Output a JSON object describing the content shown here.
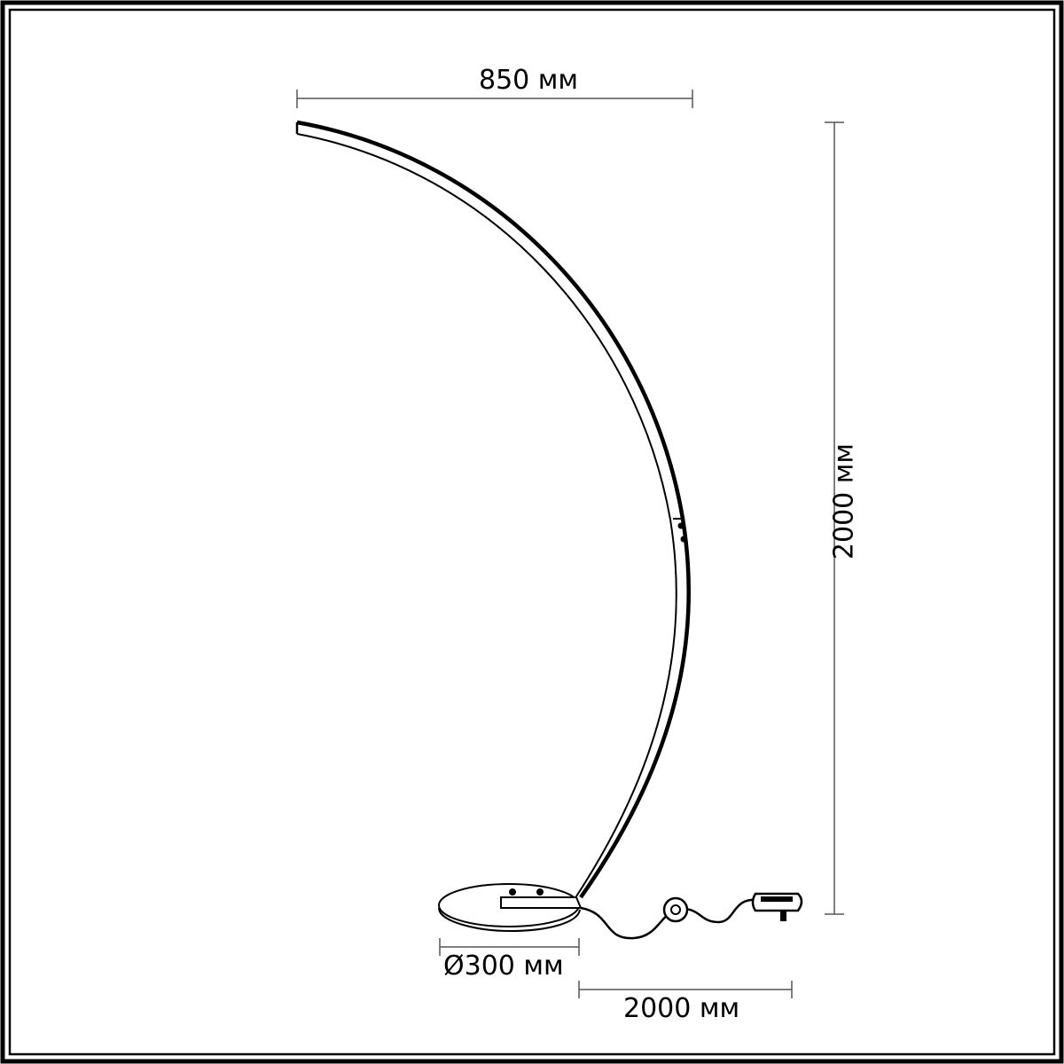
{
  "dimensions": {
    "width": "850 мм",
    "height": "2000 мм",
    "base_diameter": "Ø300 мм",
    "cable_length": "2000 мм"
  },
  "colors": {
    "line": "#000000",
    "background": "#ffffff"
  }
}
